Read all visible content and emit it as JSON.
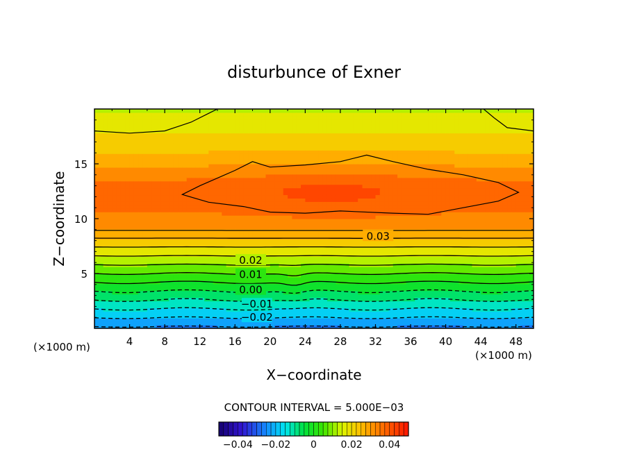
{
  "chart_data": {
    "type": "contour",
    "title": "disturbunce of Exner",
    "xlabel": "X−coordinate",
    "ylabel": "Z−coordinate",
    "x_unit_left": "(×1000 m)",
    "x_unit_right": "(×1000 m)",
    "xlim": [
      0,
      50
    ],
    "ylim": [
      0,
      20
    ],
    "x_ticks": [
      4,
      8,
      12,
      16,
      20,
      24,
      28,
      32,
      36,
      40,
      44,
      48
    ],
    "y_ticks": [
      5,
      10,
      15
    ],
    "contour_interval_text": "CONTOUR INTERVAL = 5.000E−03",
    "contour_labels": [
      {
        "text": "0.03",
        "x": 32.3,
        "z": 8.4
      },
      {
        "text": "0.02",
        "x": 17.8,
        "z": 6.2
      },
      {
        "text": "0.01",
        "x": 17.8,
        "z": 4.9
      },
      {
        "text": "0.00",
        "x": 17.8,
        "z": 3.5
      },
      {
        "text": "−0.01",
        "x": 18.5,
        "z": 2.2
      },
      {
        "text": "−0.02",
        "x": 18.5,
        "z": 1.0
      }
    ],
    "colorbar": {
      "min": -0.05,
      "max": 0.05,
      "tick_values": [
        -0.04,
        -0.02,
        0,
        0.02,
        0.04
      ],
      "tick_labels": [
        "−0.04",
        "−0.02",
        "0",
        "0.02",
        "0.04"
      ]
    }
  }
}
